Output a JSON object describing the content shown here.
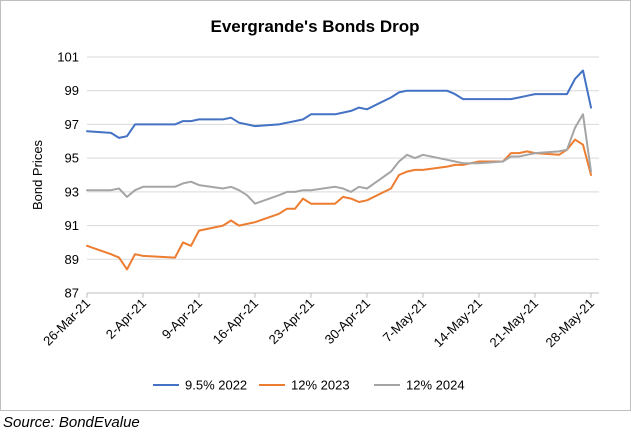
{
  "chart_data": {
    "type": "line",
    "title": "Evergrande's Bonds Drop",
    "xlabel": "",
    "ylabel": "Bond Prices",
    "ylim": [
      87,
      101
    ],
    "yticks": [
      87,
      89,
      91,
      93,
      95,
      97,
      99,
      101
    ],
    "xlim": [
      "2021-03-26",
      "2021-05-29"
    ],
    "x_tick_dates": [
      "2021-03-26",
      "2021-04-02",
      "2021-04-09",
      "2021-04-16",
      "2021-04-23",
      "2021-04-30",
      "2021-05-07",
      "2021-05-14",
      "2021-05-21",
      "2021-05-28"
    ],
    "x_tick_labels": [
      "26-Mar-21",
      "2-Apr-21",
      "9-Apr-21",
      "16-Apr-21",
      "23-Apr-21",
      "30-Apr-21",
      "7-May-21",
      "14-May-21",
      "21-May-21",
      "28-May-21"
    ],
    "grid": "horizontal",
    "legend_position": "bottom",
    "series": [
      {
        "name": "9.5% 2022",
        "color": "#4472C4",
        "x": [
          "2021-03-26",
          "2021-03-29",
          "2021-03-30",
          "2021-03-31",
          "2021-04-01",
          "2021-04-02",
          "2021-04-06",
          "2021-04-07",
          "2021-04-08",
          "2021-04-09",
          "2021-04-12",
          "2021-04-13",
          "2021-04-14",
          "2021-04-15",
          "2021-04-16",
          "2021-04-19",
          "2021-04-20",
          "2021-04-21",
          "2021-04-22",
          "2021-04-23",
          "2021-04-26",
          "2021-04-27",
          "2021-04-28",
          "2021-04-29",
          "2021-04-30",
          "2021-05-03",
          "2021-05-04",
          "2021-05-05",
          "2021-05-06",
          "2021-05-07",
          "2021-05-10",
          "2021-05-11",
          "2021-05-12",
          "2021-05-13",
          "2021-05-14",
          "2021-05-17",
          "2021-05-18",
          "2021-05-19",
          "2021-05-20",
          "2021-05-21",
          "2021-05-24",
          "2021-05-25",
          "2021-05-26",
          "2021-05-27",
          "2021-05-28"
        ],
        "values": [
          96.6,
          96.5,
          96.2,
          96.3,
          97.0,
          97.0,
          97.0,
          97.2,
          97.2,
          97.3,
          97.3,
          97.4,
          97.1,
          97.0,
          96.9,
          97.0,
          97.1,
          97.2,
          97.3,
          97.6,
          97.6,
          97.7,
          97.8,
          98.0,
          97.9,
          98.6,
          98.9,
          99.0,
          99.0,
          99.0,
          99.0,
          98.8,
          98.5,
          98.5,
          98.5,
          98.5,
          98.5,
          98.6,
          98.7,
          98.8,
          98.8,
          98.8,
          99.7,
          100.2,
          98.0
        ]
      },
      {
        "name": "12% 2023",
        "color": "#ED7D31",
        "x": [
          "2021-03-26",
          "2021-03-29",
          "2021-03-30",
          "2021-03-31",
          "2021-04-01",
          "2021-04-02",
          "2021-04-06",
          "2021-04-07",
          "2021-04-08",
          "2021-04-09",
          "2021-04-12",
          "2021-04-13",
          "2021-04-14",
          "2021-04-15",
          "2021-04-16",
          "2021-04-19",
          "2021-04-20",
          "2021-04-21",
          "2021-04-22",
          "2021-04-23",
          "2021-04-26",
          "2021-04-27",
          "2021-04-28",
          "2021-04-29",
          "2021-04-30",
          "2021-05-03",
          "2021-05-04",
          "2021-05-05",
          "2021-05-06",
          "2021-05-07",
          "2021-05-10",
          "2021-05-11",
          "2021-05-12",
          "2021-05-13",
          "2021-05-14",
          "2021-05-17",
          "2021-05-18",
          "2021-05-19",
          "2021-05-20",
          "2021-05-21",
          "2021-05-24",
          "2021-05-25",
          "2021-05-26",
          "2021-05-27",
          "2021-05-28"
        ],
        "values": [
          89.8,
          89.3,
          89.1,
          88.4,
          89.3,
          89.2,
          89.1,
          90.0,
          89.8,
          90.7,
          91.0,
          91.3,
          91.0,
          91.1,
          91.2,
          91.7,
          92.0,
          92.0,
          92.6,
          92.3,
          92.3,
          92.7,
          92.6,
          92.4,
          92.5,
          93.2,
          94.0,
          94.2,
          94.3,
          94.3,
          94.5,
          94.6,
          94.6,
          94.7,
          94.8,
          94.8,
          95.3,
          95.3,
          95.4,
          95.3,
          95.2,
          95.5,
          96.1,
          95.8,
          94.0
        ]
      },
      {
        "name": "12% 2024",
        "color": "#A5A5A5",
        "x": [
          "2021-03-26",
          "2021-03-29",
          "2021-03-30",
          "2021-03-31",
          "2021-04-01",
          "2021-04-02",
          "2021-04-06",
          "2021-04-07",
          "2021-04-08",
          "2021-04-09",
          "2021-04-12",
          "2021-04-13",
          "2021-04-14",
          "2021-04-15",
          "2021-04-16",
          "2021-04-19",
          "2021-04-20",
          "2021-04-21",
          "2021-04-22",
          "2021-04-23",
          "2021-04-26",
          "2021-04-27",
          "2021-04-28",
          "2021-04-29",
          "2021-04-30",
          "2021-05-03",
          "2021-05-04",
          "2021-05-05",
          "2021-05-06",
          "2021-05-07",
          "2021-05-10",
          "2021-05-11",
          "2021-05-12",
          "2021-05-13",
          "2021-05-14",
          "2021-05-17",
          "2021-05-18",
          "2021-05-19",
          "2021-05-20",
          "2021-05-21",
          "2021-05-24",
          "2021-05-25",
          "2021-05-26",
          "2021-05-27",
          "2021-05-28"
        ],
        "values": [
          93.1,
          93.1,
          93.2,
          92.7,
          93.1,
          93.3,
          93.3,
          93.5,
          93.6,
          93.4,
          93.2,
          93.3,
          93.1,
          92.8,
          92.3,
          92.8,
          93.0,
          93.0,
          93.1,
          93.1,
          93.3,
          93.2,
          93.0,
          93.3,
          93.2,
          94.2,
          94.8,
          95.2,
          95.0,
          95.2,
          94.9,
          94.8,
          94.7,
          94.7,
          94.7,
          94.8,
          95.1,
          95.1,
          95.2,
          95.3,
          95.4,
          95.5,
          96.8,
          97.6,
          94.2
        ]
      }
    ]
  },
  "source_text": "Source: BondEvalue"
}
